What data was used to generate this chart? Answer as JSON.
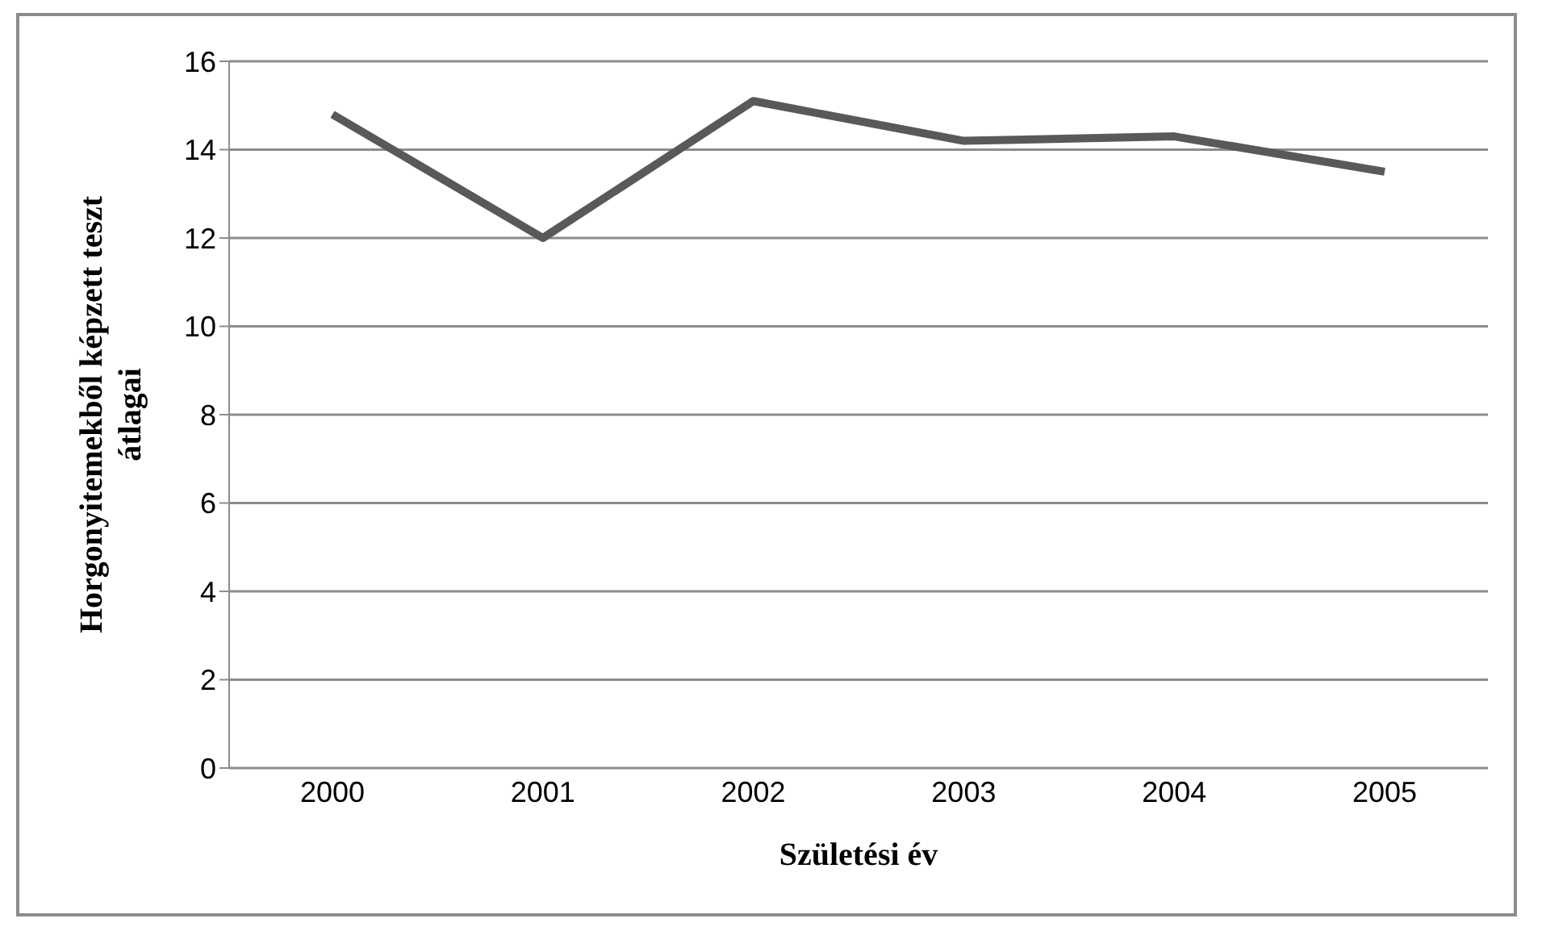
{
  "chart_data": {
    "type": "line",
    "xlabel": "Születési év",
    "ylabel": "Horgonyitemekből képzett teszt átlagai",
    "categories": [
      "2000",
      "2001",
      "2002",
      "2003",
      "2004",
      "2005"
    ],
    "series": [
      {
        "color": "#595959",
        "values": [
          14.8,
          12.0,
          15.1,
          14.2,
          14.3,
          13.5
        ]
      }
    ],
    "ylim": [
      0,
      16
    ],
    "yticks": [
      0,
      2,
      4,
      6,
      8,
      10,
      12,
      14,
      16
    ],
    "grid": "y",
    "legend": false,
    "marker": "none",
    "line_style": "solid"
  }
}
